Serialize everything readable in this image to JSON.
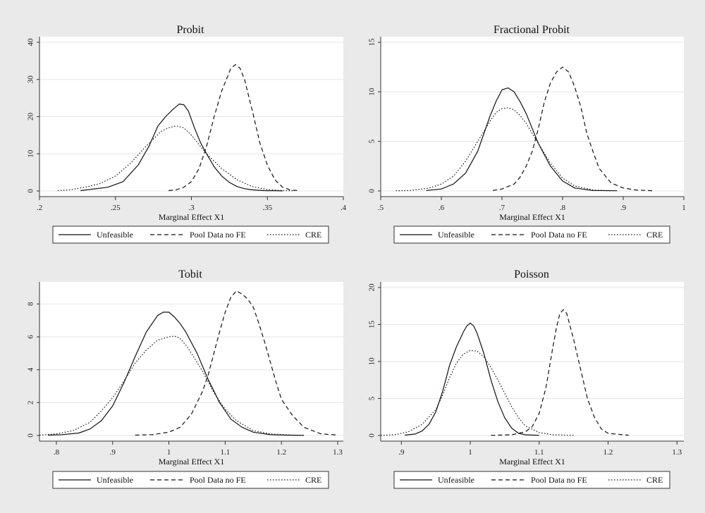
{
  "chart_data": [
    {
      "type": "line",
      "title": "Probit",
      "xlabel": "Marginal Effect X1",
      "ylabel": "",
      "xlim": [
        0.2,
        0.4
      ],
      "ylim": [
        0,
        40
      ],
      "xticks": [
        ".2",
        ".25",
        ".3",
        ".35",
        ".4"
      ],
      "xtick_values": [
        0.2,
        0.25,
        0.3,
        0.35,
        0.4
      ],
      "yticks": [
        "0",
        "10",
        "20",
        "30",
        "40"
      ],
      "ytick_values": [
        0,
        10,
        20,
        30,
        40
      ],
      "series": [
        {
          "name": "Unfeasible",
          "style": "solid",
          "x": [
            0.227,
            0.235,
            0.245,
            0.255,
            0.265,
            0.272,
            0.278,
            0.283,
            0.288,
            0.292,
            0.295,
            0.298,
            0.302,
            0.306,
            0.31,
            0.315,
            0.32,
            0.325,
            0.33,
            0.335,
            0.34,
            0.348,
            0.355,
            0.36
          ],
          "y": [
            0.1,
            0.5,
            1,
            2.5,
            7,
            12,
            17.5,
            20,
            22,
            23.4,
            23.2,
            21.5,
            17,
            13,
            10,
            6.5,
            4,
            2.3,
            1.2,
            0.6,
            0.3,
            0.1,
            0.05,
            0.02
          ]
        },
        {
          "name": "Pool Data no FE",
          "style": "dashed",
          "x": [
            0.285,
            0.29,
            0.295,
            0.3,
            0.305,
            0.31,
            0.315,
            0.32,
            0.323,
            0.326,
            0.329,
            0.332,
            0.335,
            0.338,
            0.341,
            0.345,
            0.35,
            0.355,
            0.36,
            0.365,
            0.37
          ],
          "y": [
            0.1,
            0.3,
            1,
            2.5,
            6,
            12,
            20,
            27,
            30,
            33,
            34,
            33,
            30,
            25,
            20,
            13,
            7,
            3,
            1,
            0.3,
            0.1
          ]
        },
        {
          "name": "CRE",
          "style": "dotted",
          "x": [
            0.212,
            0.22,
            0.23,
            0.24,
            0.25,
            0.26,
            0.27,
            0.28,
            0.285,
            0.29,
            0.295,
            0.3,
            0.305,
            0.31,
            0.32,
            0.33,
            0.34,
            0.35,
            0.36,
            0.368
          ],
          "y": [
            0.1,
            0.3,
            1,
            2,
            4,
            7.5,
            12,
            16,
            17,
            17.5,
            17,
            15,
            12.5,
            10,
            6,
            3,
            1.2,
            0.4,
            0.1,
            0.05
          ]
        }
      ]
    },
    {
      "type": "line",
      "title": "Fractional Probit",
      "xlabel": "Marginal Effect X1",
      "ylabel": "",
      "xlim": [
        0.5,
        1
      ],
      "ylim": [
        0,
        15
      ],
      "xticks": [
        ".5",
        ".6",
        ".7",
        ".8",
        ".9",
        "1"
      ],
      "xtick_values": [
        0.5,
        0.6,
        0.7,
        0.8,
        0.9,
        1
      ],
      "yticks": [
        "0",
        "5",
        "10",
        "15"
      ],
      "ytick_values": [
        0,
        5,
        10,
        15
      ],
      "series": [
        {
          "name": "Unfeasible",
          "style": "solid",
          "x": [
            0.575,
            0.6,
            0.62,
            0.64,
            0.66,
            0.68,
            0.69,
            0.7,
            0.71,
            0.72,
            0.73,
            0.74,
            0.76,
            0.78,
            0.8,
            0.82,
            0.85,
            0.89
          ],
          "y": [
            0.05,
            0.2,
            0.7,
            1.8,
            4,
            7.5,
            9,
            10.2,
            10.4,
            10,
            9,
            7.8,
            4.8,
            2.5,
            1,
            0.3,
            0.05,
            0.02
          ]
        },
        {
          "name": "Pool Data no FE",
          "style": "dashed",
          "x": [
            0.685,
            0.7,
            0.72,
            0.73,
            0.74,
            0.75,
            0.76,
            0.77,
            0.78,
            0.79,
            0.8,
            0.81,
            0.82,
            0.83,
            0.84,
            0.85,
            0.86,
            0.88,
            0.9,
            0.92,
            0.95
          ],
          "y": [
            0.05,
            0.2,
            0.7,
            1.4,
            2.5,
            4,
            6.3,
            9,
            10.9,
            12,
            12.5,
            12,
            10.5,
            8.5,
            5.8,
            4,
            2.3,
            0.8,
            0.3,
            0.1,
            0.02
          ]
        },
        {
          "name": "CRE",
          "style": "dotted",
          "x": [
            0.525,
            0.55,
            0.58,
            0.6,
            0.62,
            0.64,
            0.66,
            0.68,
            0.69,
            0.7,
            0.71,
            0.72,
            0.73,
            0.74,
            0.76,
            0.78,
            0.8,
            0.82,
            0.85,
            0.88
          ],
          "y": [
            0.02,
            0.05,
            0.3,
            0.7,
            1.5,
            3,
            5,
            7,
            7.9,
            8.3,
            8.4,
            8.2,
            7.6,
            6.8,
            4.8,
            2.8,
            1.3,
            0.5,
            0.1,
            0.02
          ]
        }
      ]
    },
    {
      "type": "line",
      "title": "Tobit",
      "xlabel": "Marginal Effect X1",
      "ylabel": "",
      "xlim": [
        0.77,
        1.31
      ],
      "ylim": [
        0,
        9
      ],
      "xticks": [
        ".8",
        ".9",
        "1",
        "1.1",
        "1.2",
        "1.3"
      ],
      "xtick_values": [
        0.8,
        0.9,
        1,
        1.1,
        1.2,
        1.3
      ],
      "yticks": [
        "0",
        "2",
        "4",
        "6",
        "8"
      ],
      "ytick_values": [
        0,
        2,
        4,
        6,
        8
      ],
      "series": [
        {
          "name": "Unfeasible",
          "style": "solid",
          "x": [
            0.785,
            0.81,
            0.84,
            0.86,
            0.88,
            0.9,
            0.92,
            0.94,
            0.96,
            0.98,
            0.99,
            1.0,
            1.01,
            1.02,
            1.03,
            1.05,
            1.07,
            1.09,
            1.11,
            1.13,
            1.15,
            1.18,
            1.21,
            1.24
          ],
          "y": [
            0.02,
            0.05,
            0.15,
            0.4,
            0.9,
            1.8,
            3.2,
            4.8,
            6.3,
            7.3,
            7.5,
            7.5,
            7.2,
            6.8,
            6.3,
            5,
            3.4,
            2,
            1,
            0.5,
            0.2,
            0.05,
            0.02,
            0.01
          ]
        },
        {
          "name": "Pool Data no FE",
          "style": "dashed",
          "x": [
            0.94,
            0.97,
            1.0,
            1.02,
            1.04,
            1.06,
            1.07,
            1.08,
            1.09,
            1.1,
            1.11,
            1.12,
            1.13,
            1.14,
            1.15,
            1.16,
            1.17,
            1.18,
            1.19,
            1.2,
            1.22,
            1.24,
            1.27,
            1.3
          ],
          "y": [
            0.02,
            0.05,
            0.2,
            0.5,
            1.3,
            2.7,
            3.7,
            5,
            6.3,
            7.5,
            8.4,
            8.8,
            8.6,
            8.3,
            7.8,
            6.8,
            5.7,
            4.5,
            3.3,
            2.2,
            1.2,
            0.5,
            0.1,
            0.03
          ]
        },
        {
          "name": "CRE",
          "style": "dotted",
          "x": [
            0.77,
            0.8,
            0.83,
            0.86,
            0.88,
            0.9,
            0.92,
            0.94,
            0.96,
            0.98,
            1.0,
            1.01,
            1.02,
            1.03,
            1.04,
            1.06,
            1.08,
            1.1,
            1.12,
            1.15,
            1.18,
            1.21,
            1.24
          ],
          "y": [
            0.02,
            0.1,
            0.3,
            0.8,
            1.5,
            2.3,
            3.3,
            4.4,
            5.2,
            5.8,
            6.0,
            6.05,
            5.9,
            5.5,
            5.0,
            3.9,
            2.6,
            1.6,
            0.9,
            0.3,
            0.1,
            0.03,
            0.01
          ]
        }
      ]
    },
    {
      "type": "line",
      "title": "Poisson",
      "xlabel": "Marginal Effect X1",
      "ylabel": "",
      "xlim": [
        0.87,
        1.31
      ],
      "ylim": [
        0,
        20
      ],
      "xticks": [
        ".9",
        "1",
        "1.1",
        "1.2",
        "1.3"
      ],
      "xtick_values": [
        0.9,
        1,
        1.1,
        1.2,
        1.3
      ],
      "yticks": [
        "0",
        "5",
        "10",
        "15",
        "20"
      ],
      "ytick_values": [
        0,
        5,
        10,
        15,
        20
      ],
      "series": [
        {
          "name": "Unfeasible",
          "style": "solid",
          "x": [
            0.905,
            0.92,
            0.93,
            0.94,
            0.95,
            0.96,
            0.97,
            0.98,
            0.99,
            0.995,
            1.0,
            1.005,
            1.01,
            1.02,
            1.03,
            1.04,
            1.05,
            1.06,
            1.07,
            1.08,
            1.1
          ],
          "y": [
            0.05,
            0.2,
            0.6,
            1.5,
            3.2,
            6,
            9.5,
            12,
            14,
            14.8,
            15.2,
            14.8,
            13.8,
            11,
            7.5,
            4.6,
            2.4,
            1,
            0.3,
            0.1,
            0.02
          ]
        },
        {
          "name": "Pool Data no FE",
          "style": "dashed",
          "x": [
            1.03,
            1.06,
            1.08,
            1.09,
            1.1,
            1.11,
            1.12,
            1.125,
            1.13,
            1.135,
            1.14,
            1.15,
            1.16,
            1.17,
            1.18,
            1.19,
            1.2,
            1.23
          ],
          "y": [
            0.02,
            0.1,
            0.5,
            1.2,
            3,
            6.5,
            12,
            14.5,
            16.5,
            17,
            16.5,
            13,
            9,
            5,
            2.5,
            0.9,
            0.3,
            0.03
          ]
        },
        {
          "name": "CRE",
          "style": "dotted",
          "x": [
            0.87,
            0.89,
            0.91,
            0.93,
            0.95,
            0.96,
            0.97,
            0.98,
            0.99,
            1.0,
            1.01,
            1.02,
            1.03,
            1.04,
            1.05,
            1.06,
            1.07,
            1.08,
            1.1,
            1.12,
            1.15
          ],
          "y": [
            0.02,
            0.1,
            0.5,
            1.5,
            3.5,
            5.5,
            7.8,
            9.8,
            11,
            11.5,
            11.4,
            10.6,
            9.2,
            7.5,
            5.7,
            3.9,
            2.4,
            1.3,
            0.4,
            0.1,
            0.02
          ]
        }
      ]
    }
  ]
}
